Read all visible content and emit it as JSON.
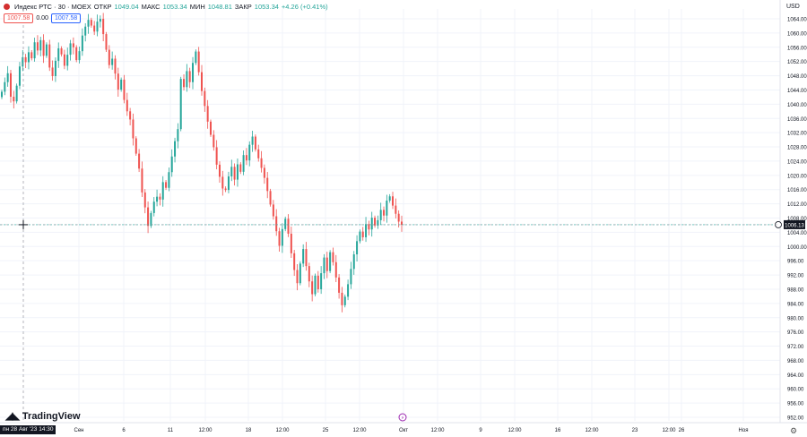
{
  "header": {
    "symbol": "Индекс РТС · 30 · MOEX",
    "open_label": "ОТКР",
    "open_value": "1049.04",
    "high_label": "МАКС",
    "high_value": "1053.34",
    "low_label": "МИН",
    "low_value": "1048.81",
    "close_label": "ЗАКР",
    "close_value": "1053.34",
    "change": "+4.26 (+0.41%)"
  },
  "price_boxes": {
    "bid": "1007.58",
    "spread": "0.00",
    "ask": "1007.58"
  },
  "currency": "USD",
  "logo_text": "TradingView",
  "cursor_time": "пн 28 Авг '23   14:30",
  "last_price_label": "1006.13",
  "colors": {
    "up": "#26a69a",
    "down": "#ef5350",
    "grid": "#f0f3fa",
    "axis_text": "#131722"
  },
  "chart_data": {
    "type": "candlestick",
    "title": "Индекс РТС · 30 · MOEX",
    "xlabel": "",
    "ylabel": "",
    "ylim": [
      950,
      1066
    ],
    "y_ticks": [
      "1064.00",
      "1060.00",
      "1056.00",
      "1052.00",
      "1048.00",
      "1044.00",
      "1040.00",
      "1036.00",
      "1032.00",
      "1028.00",
      "1024.00",
      "1020.00",
      "1016.00",
      "1012.00",
      "1008.00",
      "1004.00",
      "1000.00",
      "996.00",
      "992.00",
      "988.00",
      "984.00",
      "980.00",
      "976.00",
      "972.00",
      "968.00",
      "964.00",
      "960.00",
      "956.00",
      "952.00"
    ],
    "x_ticks": [
      "Сен",
      "6",
      "11",
      "12:00",
      "18",
      "12:00",
      "25",
      "12:00",
      "Окт",
      "12:00",
      "9",
      "12:00",
      "16",
      "12:00",
      "23",
      "12:00",
      "26",
      "Ноя"
    ],
    "crosshair_price": 1006.13,
    "last_price": 1006.13,
    "series": [
      {
        "values": [
          1043.5,
          1046.2,
          1048.7,
          1042.1,
          1040.8,
          1045.2,
          1050.6,
          1053.2,
          1051.8,
          1054.6,
          1052.9,
          1057.4,
          1055.1,
          1058.0,
          1053.6,
          1056.8,
          1050.3,
          1047.9,
          1052.2,
          1055.7,
          1054.0,
          1050.8,
          1053.9,
          1057.1,
          1056.0,
          1052.4,
          1054.9,
          1059.3,
          1061.8,
          1063.7,
          1062.1,
          1060.4,
          1063.2,
          1064.0,
          1059.7,
          1055.3,
          1051.0,
          1052.8,
          1048.6,
          1044.1,
          1046.9,
          1041.2,
          1038.0,
          1035.7,
          1030.4,
          1026.1,
          1021.9,
          1015.2,
          1011.0,
          1005.8,
          1009.4,
          1012.6,
          1014.0,
          1013.2,
          1018.1,
          1016.5,
          1020.9,
          1025.3,
          1029.6,
          1033.0,
          1047.1,
          1044.8,
          1049.3,
          1046.2,
          1051.6,
          1054.8,
          1049.0,
          1043.7,
          1039.5,
          1035.1,
          1031.4,
          1027.9,
          1023.0,
          1019.6,
          1016.3,
          1015.9,
          1019.7,
          1022.4,
          1018.8,
          1023.1,
          1021.0,
          1025.7,
          1024.2,
          1028.6,
          1030.9,
          1027.3,
          1024.8,
          1022.1,
          1019.3,
          1015.6,
          1011.8,
          1008.5,
          1004.3,
          1000.2,
          1004.9,
          1007.8,
          1003.6,
          998.1,
          993.4,
          989.7,
          995.2,
          999.3,
          994.5,
          990.2,
          986.6,
          991.8,
          988.0,
          992.5,
          996.9,
          993.1,
          998.4,
          995.6,
          991.3,
          987.0,
          983.5,
          985.9,
          989.4,
          993.7,
          997.8,
          1001.5,
          1004.2,
          1002.6,
          1006.3,
          1004.8,
          1008.1,
          1005.9,
          1007.4,
          1010.3,
          1008.7,
          1012.9,
          1014.1,
          1011.5,
          1009.2,
          1007.0,
          1006.13
        ]
      }
    ]
  }
}
